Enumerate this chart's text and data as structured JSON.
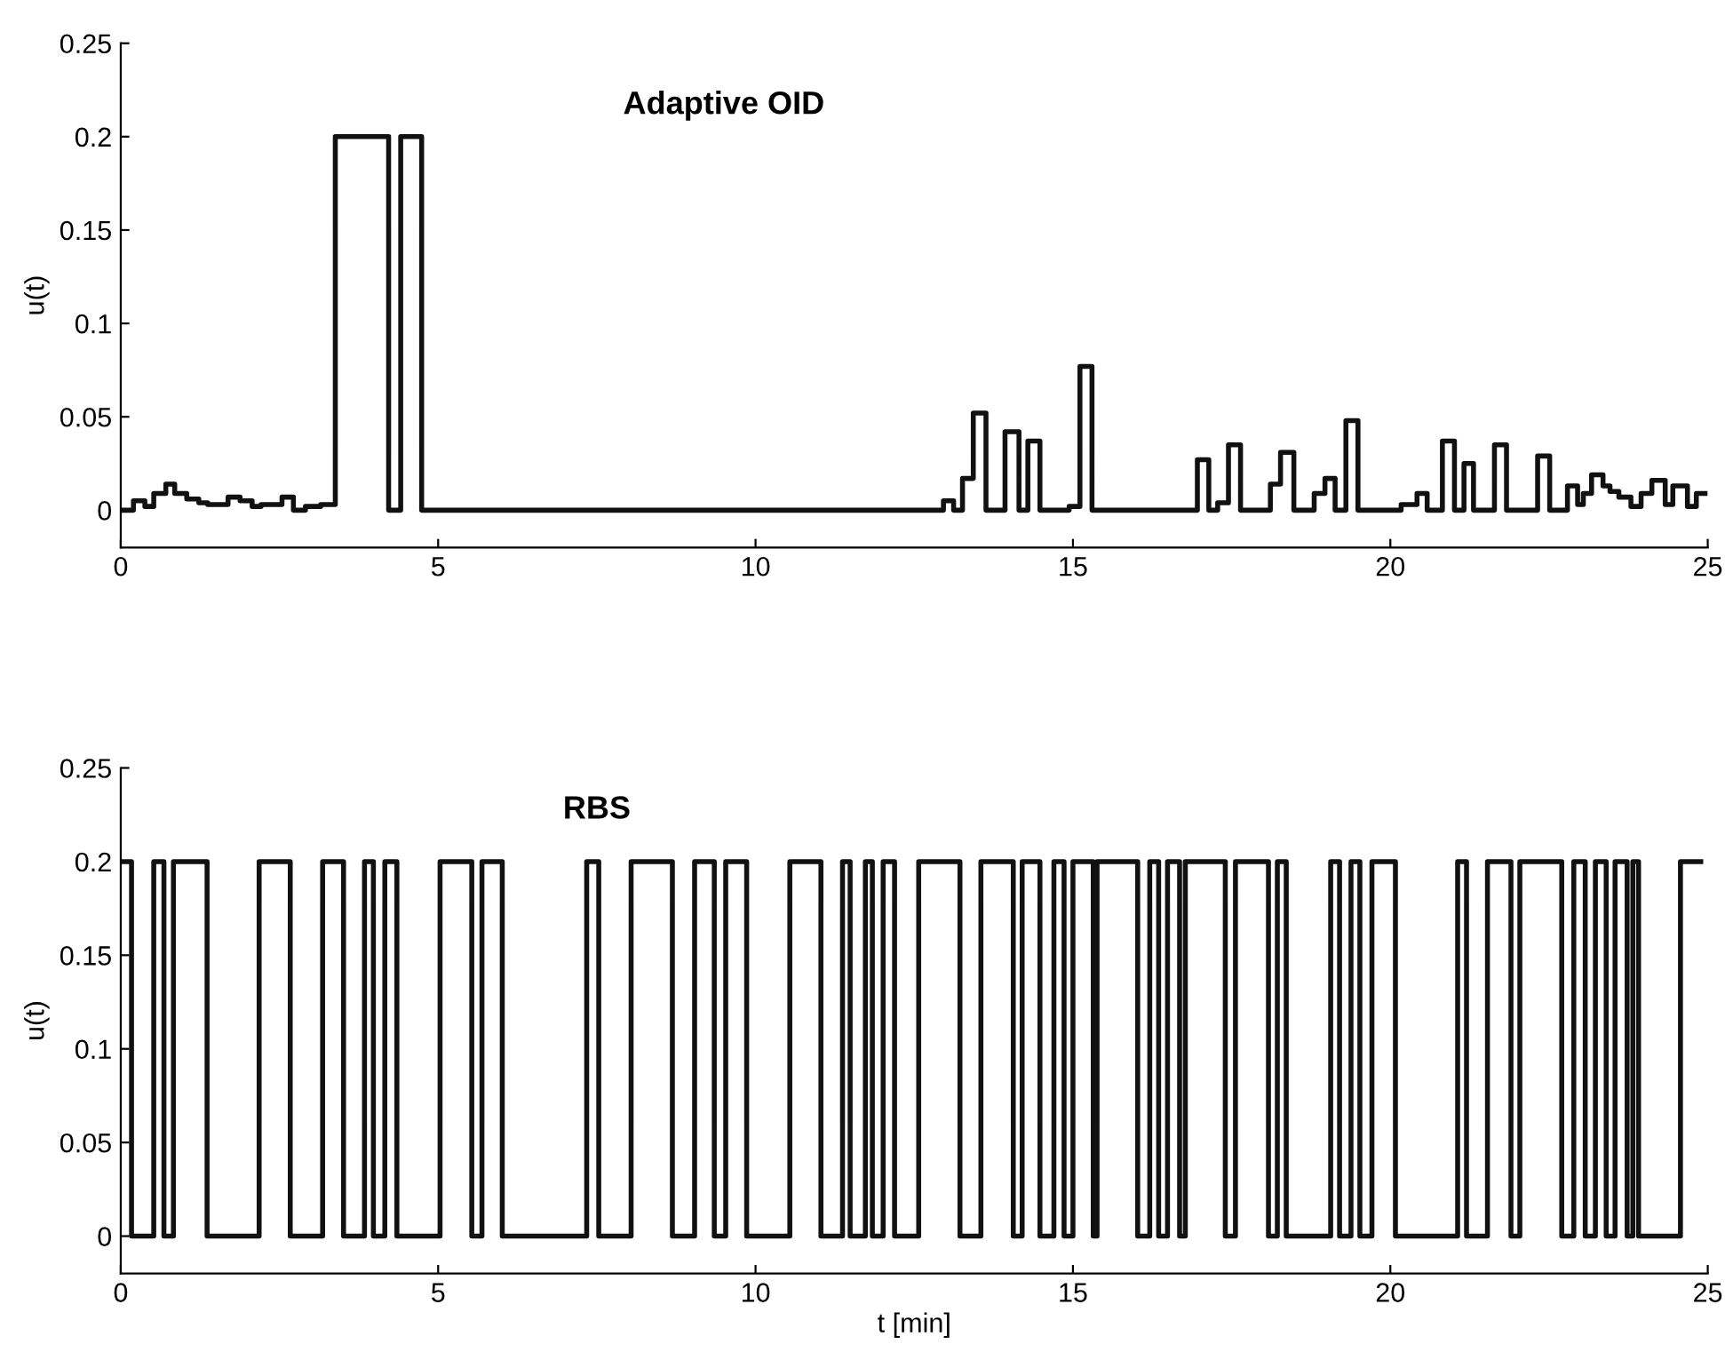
{
  "chart_data": [
    {
      "type": "step",
      "title": "Adaptive OID",
      "ylabel": "u(t)",
      "xlim": [
        0,
        25
      ],
      "xticks": [
        0,
        5,
        10,
        15,
        20,
        25
      ],
      "ylim": [
        -0.02,
        0.25
      ],
      "yticks": [
        0,
        0.05,
        0.1,
        0.15,
        0.2,
        0.25
      ],
      "grid": false,
      "line_style": "solid",
      "marker": "none",
      "series": [
        {
          "color": "#111111",
          "x": [
            0,
            0.2,
            0.38,
            0.52,
            0.71,
            0.85,
            1.04,
            1.23,
            1.37,
            1.69,
            1.88,
            2.07,
            2.21,
            2.54,
            2.72,
            2.91,
            3.15,
            3.38,
            4.22,
            4.41,
            4.74,
            12.96,
            13.12,
            13.26,
            13.43,
            13.63,
            13.93,
            14.15,
            14.29,
            14.48,
            14.94,
            15.11,
            15.3,
            16.96,
            17.14,
            17.28,
            17.45,
            17.64,
            18.11,
            18.27,
            18.48,
            18.8,
            18.97,
            19.13,
            19.3,
            19.49,
            20.17,
            20.42,
            20.58,
            20.82,
            21.01,
            21.16,
            21.31,
            21.64,
            21.83,
            22.32,
            22.51,
            22.79,
            22.95,
            23.04,
            23.17,
            23.35,
            23.46,
            23.6,
            23.79,
            23.95,
            24.12,
            24.33,
            24.45,
            24.68,
            24.82,
            24.96
          ],
          "values": [
            0,
            0.005,
            0.002,
            0.009,
            0.014,
            0.009,
            0.006,
            0.004,
            0.003,
            0.007,
            0.005,
            0.002,
            0.003,
            0.007,
            0,
            0.002,
            0.003,
            0.2,
            0,
            0.2,
            0,
            0.005,
            0,
            0.017,
            0.052,
            0,
            0.042,
            0,
            0.037,
            0,
            0.002,
            0.077,
            0,
            0.027,
            0,
            0.004,
            0.035,
            0,
            0.014,
            0.031,
            0,
            0.009,
            0.017,
            0,
            0.048,
            0,
            0.003,
            0.009,
            0,
            0.037,
            0,
            0.025,
            0,
            0.035,
            0,
            0.029,
            0,
            0.013,
            0.003,
            0.009,
            0.019,
            0.013,
            0.01,
            0.007,
            0.002,
            0.009,
            0.016,
            0.003,
            0.013,
            0.002,
            0.009,
            0.009
          ]
        }
      ]
    },
    {
      "type": "step",
      "title": "RBS",
      "ylabel": "u(t)",
      "xlabel": "t [min]",
      "xlim": [
        0,
        25
      ],
      "xticks": [
        0,
        5,
        10,
        15,
        20,
        25
      ],
      "ylim": [
        -0.02,
        0.25
      ],
      "yticks": [
        0,
        0.05,
        0.1,
        0.15,
        0.2,
        0.25
      ],
      "grid": false,
      "line_style": "solid",
      "marker": "none",
      "series": [
        {
          "color": "#111111",
          "x": [
            0,
            0.17,
            0.52,
            0.68,
            0.83,
            1.36,
            2.18,
            2.67,
            3.18,
            3.51,
            3.84,
            3.98,
            4.16,
            4.35,
            5.03,
            5.53,
            5.69,
            6.01,
            7.34,
            7.53,
            8.04,
            8.69,
            9.04,
            9.35,
            9.53,
            9.86,
            10.54,
            11.03,
            11.37,
            11.49,
            11.73,
            11.84,
            12.01,
            12.19,
            12.57,
            13.22,
            13.55,
            14.06,
            14.2,
            14.48,
            14.7,
            14.86,
            15.0,
            15.32,
            15.38,
            16.02,
            16.21,
            16.35,
            16.49,
            16.68,
            16.77,
            17.4,
            17.56,
            18.08,
            18.22,
            18.36,
            19.06,
            19.2,
            19.38,
            19.52,
            19.71,
            20.08,
            21.06,
            21.2,
            21.53,
            21.9,
            22.04,
            22.7,
            22.89,
            23.07,
            23.23,
            23.4,
            23.54,
            23.73,
            23.82,
            23.91,
            24.57,
            24.89
          ],
          "values": [
            0.2,
            0,
            0.2,
            0,
            0.2,
            0,
            0.2,
            0,
            0.2,
            0,
            0.2,
            0,
            0.2,
            0,
            0.2,
            0,
            0.2,
            0,
            0.2,
            0,
            0.2,
            0,
            0.2,
            0,
            0.2,
            0,
            0.2,
            0,
            0.2,
            0,
            0.2,
            0,
            0.2,
            0,
            0.2,
            0,
            0.2,
            0,
            0.2,
            0,
            0.2,
            0,
            0.2,
            0,
            0.2,
            0,
            0.2,
            0,
            0.2,
            0,
            0.2,
            0,
            0.2,
            0,
            0.2,
            0,
            0.2,
            0,
            0.2,
            0,
            0.2,
            0,
            0.2,
            0,
            0.2,
            0,
            0.2,
            0,
            0.2,
            0,
            0.2,
            0,
            0.2,
            0,
            0.2,
            0,
            0.2,
            0.2
          ]
        }
      ]
    }
  ]
}
